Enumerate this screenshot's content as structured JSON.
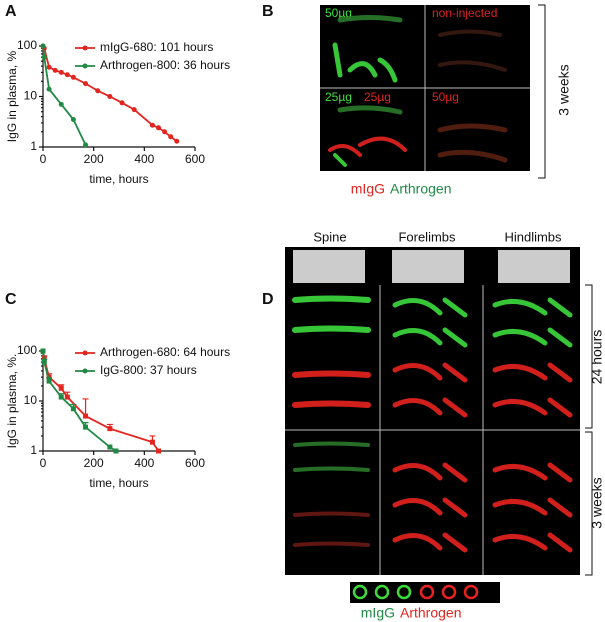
{
  "chart_data": [
    {
      "type": "line",
      "log_y": true,
      "legend": "upper right",
      "xlabel": "time, hours",
      "ylabel": "IgG in plasma, %",
      "xlim": [
        0,
        600
      ],
      "ylim": [
        1,
        100
      ],
      "xticks": [
        0,
        200,
        400,
        600
      ],
      "yticks": [
        1,
        10,
        100
      ],
      "series": [
        {
          "name": "mIgG-680: 101 hours",
          "color": "#e3241f",
          "x": [
            0,
            5,
            24,
            48,
            72,
            96,
            120,
            168,
            216,
            264,
            312,
            360,
            432,
            456,
            480,
            504,
            528
          ],
          "values": [
            100,
            90,
            38,
            33,
            30,
            27,
            24,
            18,
            13,
            10,
            7.5,
            5.5,
            2.7,
            2.4,
            2,
            1.6,
            1.3
          ]
        },
        {
          "name": "Arthrogen-800: 36 hours",
          "color": "#1f8a43",
          "x": [
            0,
            5,
            24,
            72,
            120,
            168
          ],
          "values": [
            100,
            60,
            14,
            7,
            3.5,
            1.1
          ]
        }
      ]
    },
    {
      "type": "line",
      "log_y": true,
      "legend": "upper right",
      "xlabel": "time, hours",
      "ylabel": "IgG in plasma, %.",
      "xlim": [
        0,
        600
      ],
      "ylim": [
        1,
        100
      ],
      "xticks": [
        0,
        200,
        400,
        600
      ],
      "yticks": [
        1,
        10,
        100
      ],
      "series": [
        {
          "name": "Arthrogen-680: 64  hours",
          "color": "#e3241f",
          "x": [
            0,
            5,
            24,
            72,
            96,
            168,
            264,
            432,
            456
          ],
          "values": [
            100,
            70,
            30,
            18,
            12,
            5,
            2.8,
            1.5,
            1
          ],
          "errors": [
            null,
            10,
            5,
            3,
            3,
            6,
            0.6,
            0.5,
            null
          ]
        },
        {
          "name": "IgG-800: 37 hours",
          "color": "#1f8a43",
          "x": [
            0,
            5,
            24,
            72,
            120,
            168,
            264,
            288
          ],
          "values": [
            100,
            60,
            25,
            12,
            7,
            3,
            1.2,
            1
          ],
          "errors": [
            null,
            8,
            4,
            2,
            1.5,
            0.7,
            null,
            null
          ]
        }
      ]
    }
  ],
  "panel_labels": [
    "A",
    "B",
    "C",
    "D"
  ],
  "panel_b": {
    "top_left": "50µg",
    "top_right": "non-injected",
    "bottom_left_green": "25µg",
    "bottom_left_red": "25µg",
    "bottom_right": "50µg",
    "time": "3 weeks",
    "legend_red": "mIgG",
    "legend_green": "Arthrogen"
  },
  "panel_d": {
    "columns": [
      "Spine",
      "Forelimbs",
      "Hindlimbs"
    ],
    "times": [
      "24 hours",
      "3 weeks"
    ],
    "legend_green": "mIgG",
    "legend_red": "Arthrogen"
  }
}
